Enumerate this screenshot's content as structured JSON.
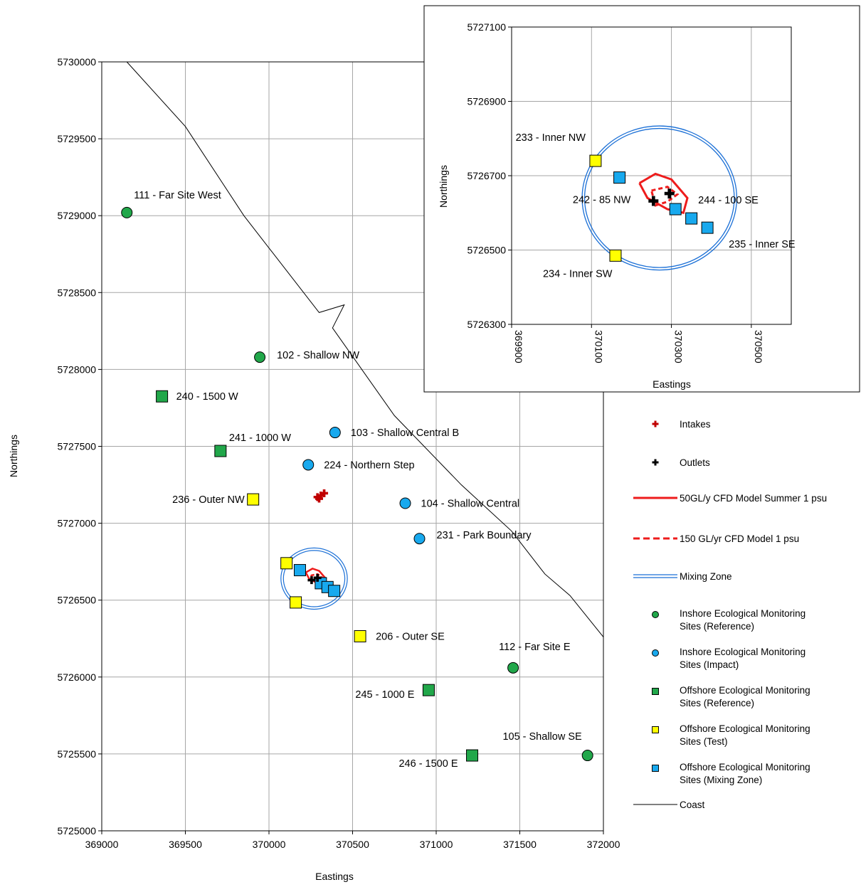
{
  "chart_data": [
    {
      "type": "scatter",
      "title": "",
      "xlabel": "Eastings",
      "ylabel": "Northings",
      "xlim": [
        369000,
        372000
      ],
      "ylim": [
        5725000,
        5730000
      ],
      "xticks": [
        "369000",
        "369500",
        "370000",
        "370500",
        "371000",
        "371500",
        "372000"
      ],
      "yticks": [
        "5725000",
        "5725500",
        "5726000",
        "5726500",
        "5727000",
        "5727500",
        "5728000",
        "5728500",
        "5729000",
        "5729500",
        "5730000"
      ],
      "grid": true,
      "series": [
        {
          "name": "Inshore Ecological Monitoring Sites (Reference)",
          "color": "#21a74a",
          "marker": "circle",
          "points": [
            {
              "x": 369150,
              "y": 5729020,
              "label": "111 - Far Site West"
            },
            {
              "x": 369945,
              "y": 5728080,
              "label": "102 - Shallow NW"
            },
            {
              "x": 371460,
              "y": 5726060,
              "label": "112 - Far Site E"
            },
            {
              "x": 371905,
              "y": 5725490,
              "label": "105 - Shallow SE"
            }
          ]
        },
        {
          "name": "Inshore Ecological Monitoring Sites (Impact)",
          "color": "#18a9ee",
          "marker": "circle",
          "points": [
            {
              "x": 370395,
              "y": 5727590,
              "label": "103 - Shallow Central B"
            },
            {
              "x": 370235,
              "y": 5727380,
              "label": "224 - Northern Step"
            },
            {
              "x": 370815,
              "y": 5727130,
              "label": "104 - Shallow Central"
            },
            {
              "x": 370900,
              "y": 5726900,
              "label": "231 - Park Boundary"
            }
          ]
        },
        {
          "name": "Offshore Ecological Monitoring Sites (Reference)",
          "color": "#21a74a",
          "marker": "square",
          "points": [
            {
              "x": 369360,
              "y": 5727825,
              "label": "240 - 1500 W"
            },
            {
              "x": 369710,
              "y": 5727470,
              "label": "241 - 1000 W"
            },
            {
              "x": 370955,
              "y": 5725915,
              "label": "245 - 1000 E"
            },
            {
              "x": 371215,
              "y": 5725490,
              "label": "246 - 1500 E"
            }
          ]
        },
        {
          "name": "Offshore Ecological Monitoring Sites (Test)",
          "color": "#ffff00",
          "marker": "square",
          "points": [
            {
              "x": 369905,
              "y": 5727155,
              "label": "236 - Outer NW"
            },
            {
              "x": 370545,
              "y": 5726265,
              "label": "206 - Outer SE"
            },
            {
              "x": 370105,
              "y": 5726740,
              "label": ""
            },
            {
              "x": 370160,
              "y": 5726485,
              "label": ""
            }
          ]
        },
        {
          "name": "Offshore Ecological Monitoring Sites (Mixing Zone)",
          "color": "#18a9ee",
          "marker": "square",
          "points": [
            {
              "x": 370185,
              "y": 5726695,
              "label": ""
            },
            {
              "x": 370310,
              "y": 5726610,
              "label": ""
            },
            {
              "x": 370350,
              "y": 5726585,
              "label": ""
            },
            {
              "x": 370390,
              "y": 5726560,
              "label": ""
            }
          ]
        },
        {
          "name": "Intakes",
          "color": "#c00000",
          "marker": "plus",
          "points": [
            {
              "x": 370290,
              "y": 5727170
            },
            {
              "x": 370310,
              "y": 5727180
            },
            {
              "x": 370330,
              "y": 5727195
            },
            {
              "x": 370300,
              "y": 5727160
            }
          ]
        },
        {
          "name": "Outlets",
          "color": "#000000",
          "marker": "plus",
          "points": [
            {
              "x": 370255,
              "y": 5726630
            },
            {
              "x": 370290,
              "y": 5726645
            }
          ]
        },
        {
          "name": "Coast",
          "color": "#000000",
          "marker": "line",
          "points": [
            {
              "x": 369150,
              "y": 5730000
            },
            {
              "x": 369500,
              "y": 5729580
            },
            {
              "x": 369850,
              "y": 5729000
            },
            {
              "x": 370300,
              "y": 5728370
            },
            {
              "x": 370450,
              "y": 5728420
            },
            {
              "x": 370380,
              "y": 5728270
            },
            {
              "x": 370750,
              "y": 5727700
            },
            {
              "x": 371150,
              "y": 5727250
            },
            {
              "x": 371450,
              "y": 5726950
            },
            {
              "x": 371650,
              "y": 5726670
            },
            {
              "x": 371800,
              "y": 5726530
            },
            {
              "x": 372000,
              "y": 5726260
            }
          ]
        },
        {
          "name": "Mixing Zone",
          "color": "#1a6fd6",
          "marker": "line",
          "center": {
            "x": 370270,
            "y": 5726640
          },
          "radius": 190
        },
        {
          "name": "50GL/y CFD Model Summer 1 psu",
          "color": "#ee1c1c",
          "marker": "line",
          "points": [
            {
              "x": 370220,
              "y": 5726680
            },
            {
              "x": 370260,
              "y": 5726705
            },
            {
              "x": 370300,
              "y": 5726690
            },
            {
              "x": 370340,
              "y": 5726640
            },
            {
              "x": 370330,
              "y": 5726600
            },
            {
              "x": 370290,
              "y": 5726610
            },
            {
              "x": 370240,
              "y": 5726640
            },
            {
              "x": 370220,
              "y": 5726680
            }
          ]
        },
        {
          "name": "150 GL/yr CFD Model 1 psu",
          "color": "#ee1c1c",
          "marker": "dashed",
          "points": [
            {
              "x": 370250,
              "y": 5726660
            },
            {
              "x": 370290,
              "y": 5726670
            },
            {
              "x": 370315,
              "y": 5726650
            },
            {
              "x": 370290,
              "y": 5726630
            },
            {
              "x": 370260,
              "y": 5726620
            },
            {
              "x": 370250,
              "y": 5726660
            }
          ]
        }
      ]
    },
    {
      "type": "scatter",
      "title": "",
      "xlabel": "Eastings",
      "ylabel": "Northings",
      "xlim": [
        369900,
        370600
      ],
      "ylim": [
        5726300,
        5727100
      ],
      "xticks": [
        "369900",
        "370100",
        "370300",
        "370500"
      ],
      "yticks": [
        "5726300",
        "5726500",
        "5726700",
        "5726900",
        "5727100"
      ],
      "grid": true,
      "points": [
        {
          "x": 370110,
          "y": 5726740,
          "color": "#ffff00",
          "marker": "square",
          "label": "233 - Inner NW"
        },
        {
          "x": 370170,
          "y": 5726695,
          "color": "#18a9ee",
          "marker": "square",
          "label": ""
        },
        {
          "x": 370310,
          "y": 5726610,
          "color": "#18a9ee",
          "marker": "square",
          "label": "244 - 100 SE"
        },
        {
          "x": 370350,
          "y": 5726585,
          "color": "#18a9ee",
          "marker": "square",
          "label": ""
        },
        {
          "x": 370390,
          "y": 5726560,
          "color": "#18a9ee",
          "marker": "square",
          "label": "235 - Inner SE"
        },
        {
          "x": 370160,
          "y": 5726485,
          "color": "#ffff00",
          "marker": "square",
          "label": "234 - Inner SW"
        },
        {
          "x": 370255,
          "y": 5726632,
          "color": "#000000",
          "marker": "plus",
          "label": "242 - 85 NW"
        },
        {
          "x": 370295,
          "y": 5726652,
          "color": "#000000",
          "marker": "plus",
          "label": ""
        }
      ]
    }
  ],
  "legend": {
    "placement": "right",
    "items": [
      {
        "label": "Intakes"
      },
      {
        "label": "Outlets"
      },
      {
        "label": "50GL/y CFD Model Summer 1 psu"
      },
      {
        "label": "150 GL/yr CFD Model 1 psu"
      },
      {
        "label": "Mixing Zone"
      },
      {
        "label": "Inshore Ecological Monitoring Sites (Reference)"
      },
      {
        "label": "Inshore Ecological Monitoring Sites (Impact)"
      },
      {
        "label": "Offshore Ecological Monitoring Sites (Reference)"
      },
      {
        "label": "Offshore Ecological Monitoring Sites (Test)"
      },
      {
        "label": "Offshore Ecological Monitoring Sites (Mixing Zone)"
      },
      {
        "label": "Coast"
      }
    ]
  }
}
